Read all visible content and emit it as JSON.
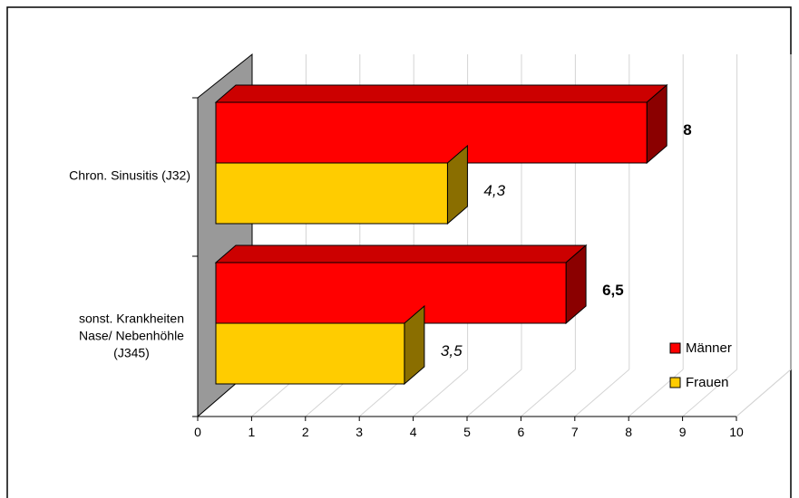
{
  "chart_data": {
    "type": "bar",
    "orientation": "horizontal",
    "three_d": true,
    "categories": [
      "Chron. Sinusitis (J32)",
      "sonst. Krankheiten Nase/ Nebenhöhle (J345)"
    ],
    "category_lines": [
      [
        "Chron. Sinusitis (J32)"
      ],
      [
        "sonst. Krankheiten",
        "Nase/ Nebenhöhle",
        "(J345)"
      ]
    ],
    "series": [
      {
        "name": "Männer",
        "values": [
          8,
          6.5
        ],
        "labels": [
          "8",
          "6,5"
        ],
        "color": "#ff0000",
        "label_style": "bold"
      },
      {
        "name": "Frauen",
        "values": [
          4.3,
          3.5
        ],
        "labels": [
          "4,3",
          "3,5"
        ],
        "color": "#ffcc00",
        "label_style": "italic"
      }
    ],
    "xlim": [
      0,
      10
    ],
    "ticks": [
      "0",
      "1",
      "2",
      "3",
      "4",
      "5",
      "6",
      "7",
      "8",
      "9",
      "10"
    ],
    "grid": true,
    "legend_position": "bottom-right",
    "title": "",
    "xlabel": "",
    "ylabel": ""
  }
}
